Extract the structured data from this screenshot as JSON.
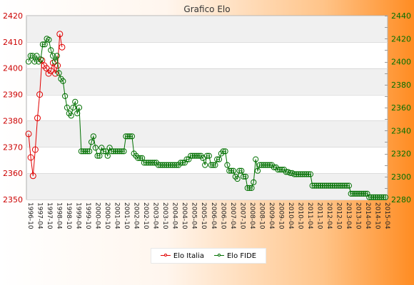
{
  "chart_data": {
    "type": "line",
    "title": "Grafico Elo",
    "grid": true,
    "legend_position": "bottom-center",
    "y_left": {
      "min": 2350,
      "max": 2420,
      "step": 10,
      "ticks": [
        2350,
        2360,
        2370,
        2380,
        2390,
        2400,
        2410,
        2420
      ]
    },
    "y_right": {
      "min": 2280,
      "max": 2440,
      "step": 20,
      "ticks": [
        2280,
        2300,
        2320,
        2340,
        2360,
        2380,
        2400,
        2420,
        2440
      ]
    },
    "x_tick_labels": [
      "1996-10",
      "1997-04",
      "1997-10",
      "1998-04",
      "1998-10",
      "1999-04",
      "1999-10",
      "2000-04",
      "2000-10",
      "2001-04",
      "2001-10",
      "2002-04",
      "2002-10",
      "2003-04",
      "2003-10",
      "2004-04",
      "2004-10",
      "2005-04",
      "2005-10",
      "2006-04",
      "2006-10",
      "2007-04",
      "2007-10",
      "2008-04",
      "2008-10",
      "2009-04",
      "2009-10",
      "2010-04",
      "2010-10",
      "2011-04",
      "2011-10",
      "2012-04",
      "2012-10",
      "2013-04",
      "2013-10",
      "2014-04",
      "2014-10",
      "2015-04"
    ],
    "series": [
      {
        "name": "Elo Italia",
        "axis": "left",
        "color": "#e00000",
        "values": [
          2375,
          2366,
          2359,
          2369,
          2381,
          2390,
          2403,
          2401,
          2400,
          2398,
          2399,
          2402,
          2398,
          2401,
          2413,
          2408
        ]
      },
      {
        "name": "Elo FIDE",
        "axis": "right",
        "color": "#007000",
        "values": [
          2400,
          2405,
          2405,
          2400,
          2405,
          2400,
          2402,
          2415,
          2415,
          2420,
          2419,
          2410,
          2405,
          2400,
          2405,
          2390,
          2385,
          2383,
          2370,
          2360,
          2355,
          2353,
          2360,
          2365,
          2355,
          2360,
          2322,
          2322,
          2322,
          2322,
          2322,
          2330,
          2335,
          2325,
          2318,
          2318,
          2325,
          2322,
          2322,
          2318,
          2325,
          2322,
          2322,
          2322,
          2322,
          2322,
          2322,
          2322,
          2335,
          2335,
          2335,
          2335,
          2320,
          2318,
          2316,
          2316,
          2316,
          2312,
          2312,
          2312,
          2312,
          2312,
          2312,
          2312,
          2310,
          2310,
          2310,
          2310,
          2310,
          2310,
          2310,
          2310,
          2310,
          2310,
          2310,
          2312,
          2312,
          2312,
          2315,
          2315,
          2318,
          2318,
          2318,
          2318,
          2318,
          2318,
          2316,
          2310,
          2318,
          2318,
          2310,
          2310,
          2310,
          2315,
          2315,
          2320,
          2322,
          2322,
          2310,
          2305,
          2305,
          2305,
          2300,
          2298,
          2305,
          2305,
          2300,
          2300,
          2290,
          2290,
          2290,
          2295,
          2315,
          2305,
          2310,
          2310,
          2310,
          2310,
          2310,
          2310,
          2310,
          2308,
          2308,
          2306,
          2306,
          2306,
          2306,
          2304,
          2304,
          2303,
          2303,
          2302,
          2302,
          2302,
          2302,
          2302,
          2302,
          2302,
          2302,
          2302,
          2292,
          2292,
          2292,
          2292,
          2292,
          2292,
          2292,
          2292,
          2292,
          2292,
          2292,
          2292,
          2292,
          2292,
          2292,
          2292,
          2292,
          2292,
          2292,
          2285,
          2285,
          2285,
          2285,
          2285,
          2285,
          2285,
          2285,
          2285,
          2282,
          2282,
          2282,
          2282,
          2282,
          2282,
          2282,
          2282,
          2282
        ]
      }
    ]
  }
}
